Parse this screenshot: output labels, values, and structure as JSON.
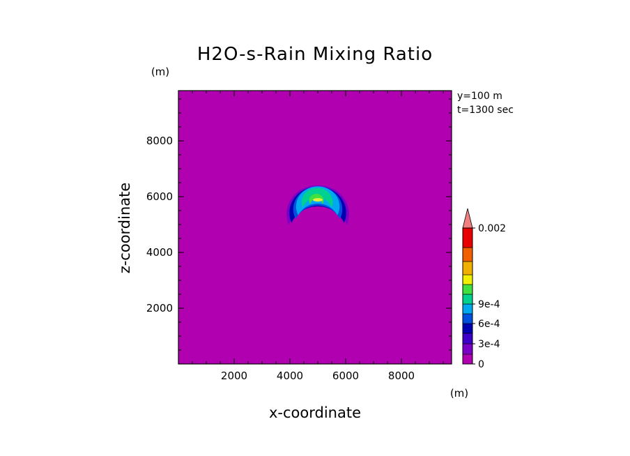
{
  "chart_data": {
    "type": "heatmap",
    "title": "H2O-s-Rain Mixing Ratio",
    "xlabel": "x-coordinate",
    "ylabel": "z-coordinate",
    "x_unit": "(m)",
    "y_unit": "(m)",
    "annotations": [
      "y=100 m",
      "t=1300 sec"
    ],
    "xlim": [
      0,
      9800
    ],
    "ylim": [
      0,
      9800
    ],
    "x_ticks": [
      2000,
      4000,
      6000,
      8000
    ],
    "y_ticks": [
      2000,
      4000,
      6000,
      8000
    ],
    "x_tick_labels": [
      "2000",
      "4000",
      "6000",
      "8000"
    ],
    "y_tick_labels": [
      "2000",
      "4000",
      "6000",
      "8000"
    ],
    "background_level": 0,
    "colorbar": {
      "levels": [
        0,
        0.0001,
        0.0002,
        0.0003,
        0.0004,
        0.0005,
        0.0006,
        0.0007,
        0.0008,
        0.0009,
        0.001,
        0.0015,
        0.002
      ],
      "colors": [
        "#b000b0",
        "#7a00c8",
        "#3c00c8",
        "#0000b0",
        "#0050e0",
        "#00a8f0",
        "#00d090",
        "#40e040",
        "#f0f000",
        "#f0b000",
        "#f06000",
        "#e80000",
        "#f08080"
      ],
      "tick_values": [
        0,
        0.0003,
        0.0006,
        0.0009,
        0.002
      ],
      "tick_labels": [
        "0",
        "3e-4",
        "6e-4",
        "9e-4",
        "0.002"
      ],
      "extend": "max"
    },
    "contours": [
      {
        "level": 0.0001,
        "color": "#7a00c8",
        "center": [
          5000,
          5380
        ],
        "outer_r": 1120,
        "inner_r": 1130,
        "inner_center": [
          5000,
          4550
        ],
        "upper_r": 1150
      },
      {
        "level": 0.0003,
        "color": "#0000b0",
        "center": [
          5000,
          5420
        ],
        "outer_r": 1020,
        "inner_r": 1050,
        "inner_center": [
          5000,
          4600
        ]
      },
      {
        "level": 0.0004,
        "color": "#0050e0",
        "center": [
          5000,
          5550
        ],
        "outer_r": 880,
        "inner_r": 900,
        "inner_center": [
          5000,
          4780
        ]
      },
      {
        "level": 0.0005,
        "color": "#00a8f0",
        "center": [
          5000,
          5650
        ],
        "outer_r": 780,
        "inner_r": 800,
        "inner_center": [
          5000,
          4950
        ]
      },
      {
        "level": 0.0006,
        "color": "#00d090",
        "center": [
          4980,
          5800
        ],
        "outer_r": 560,
        "inner_r": 560,
        "inner_center": [
          4980,
          5400
        ]
      },
      {
        "level": 0.0007,
        "color": "#40e040",
        "center": [
          4950,
          5860
        ],
        "outer_r": 260,
        "inner_r": 220,
        "inner_center": [
          4950,
          5700
        ]
      }
    ]
  }
}
